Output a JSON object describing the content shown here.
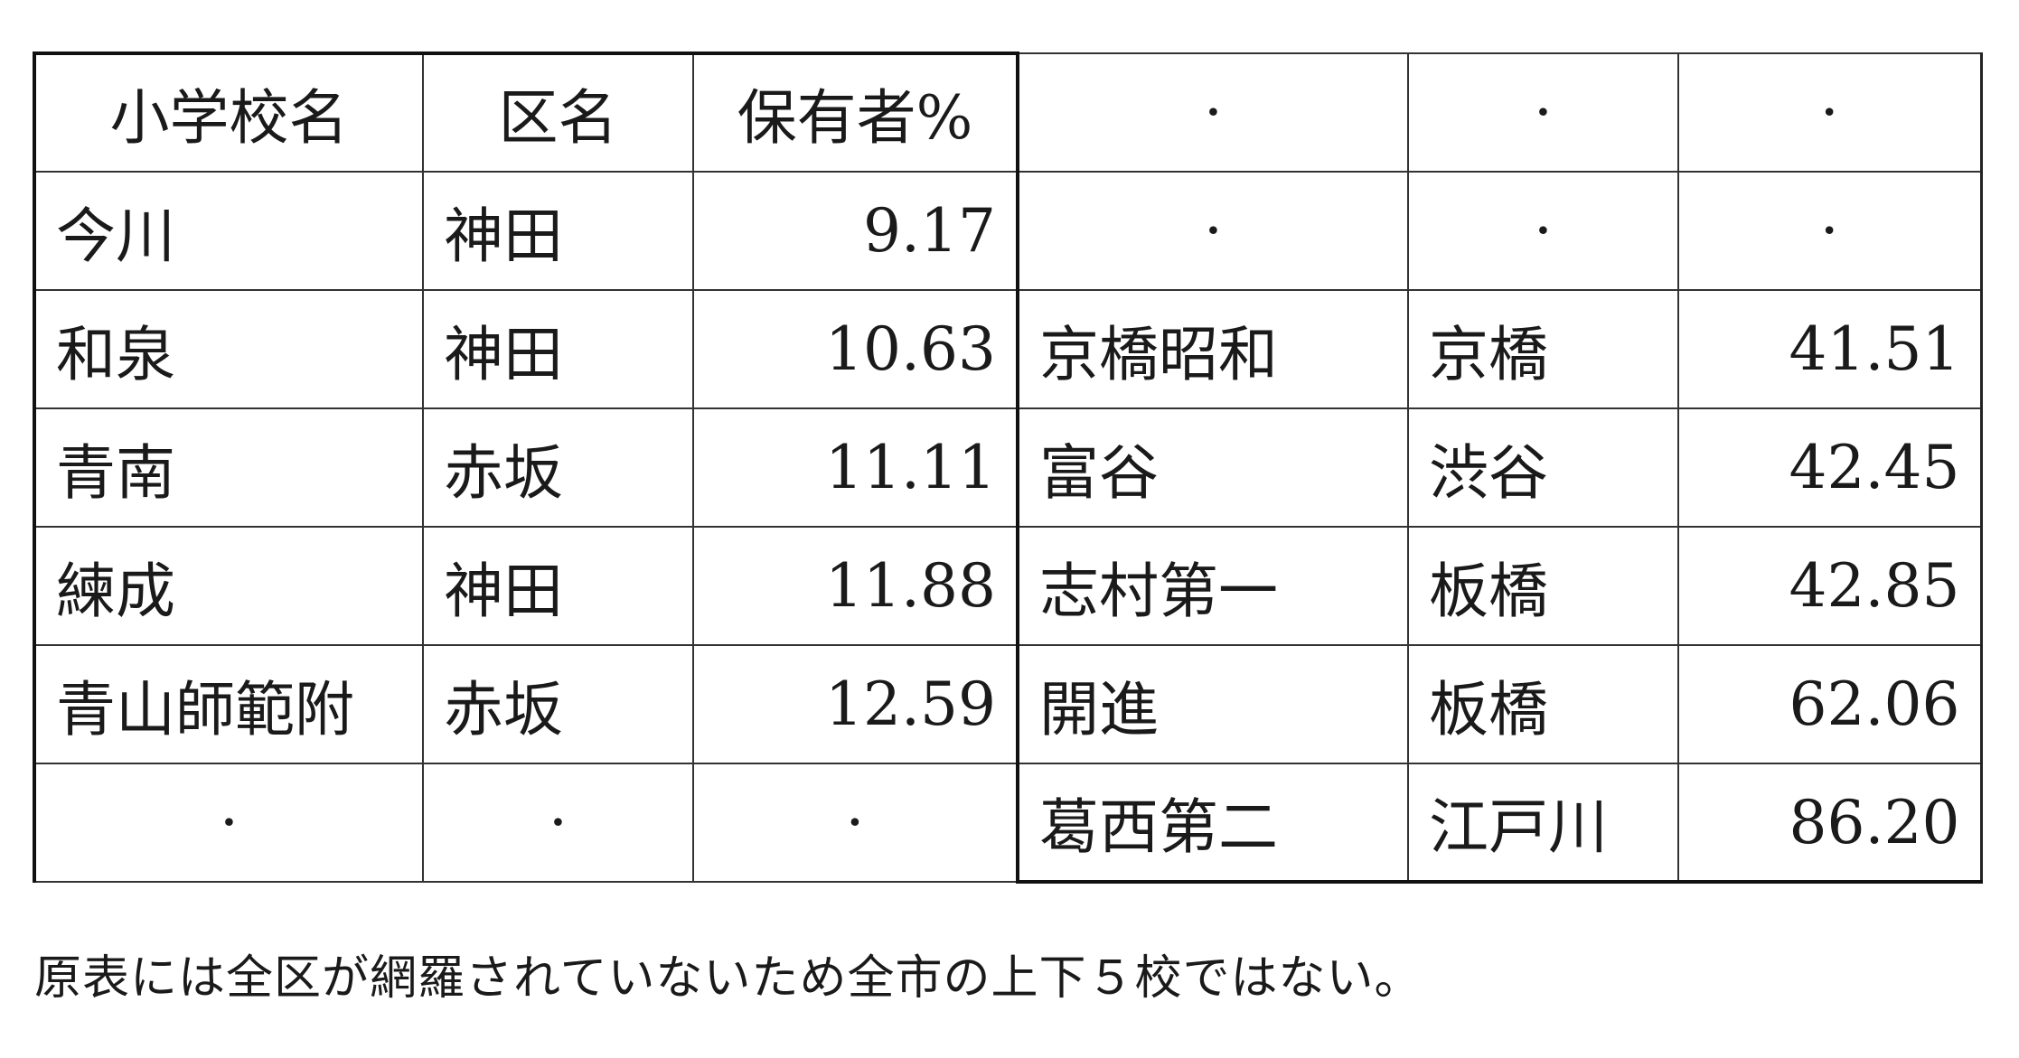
{
  "table": {
    "rows": [
      [
        "小学校名",
        "区名",
        "保有者%",
        "·",
        "·",
        "·"
      ],
      [
        "今川",
        "神田",
        "9.17",
        "·",
        "·",
        "·"
      ],
      [
        "和泉",
        "神田",
        "10.63",
        "京橋昭和",
        "京橋",
        "41.51"
      ],
      [
        "青南",
        "赤坂",
        "11.11",
        "富谷",
        "渋谷",
        "42.45"
      ],
      [
        "練成",
        "神田",
        "11.88",
        "志村第一",
        "板橋",
        "42.85"
      ],
      [
        "青山師範附",
        "赤坂",
        "12.59",
        "開進",
        "板橋",
        "62.06"
      ],
      [
        "·",
        "·",
        "·",
        "葛西第二",
        "江戸川",
        "86.20"
      ]
    ]
  },
  "caption": "原表には全区が網羅されていないため全市の上下５校ではない。"
}
